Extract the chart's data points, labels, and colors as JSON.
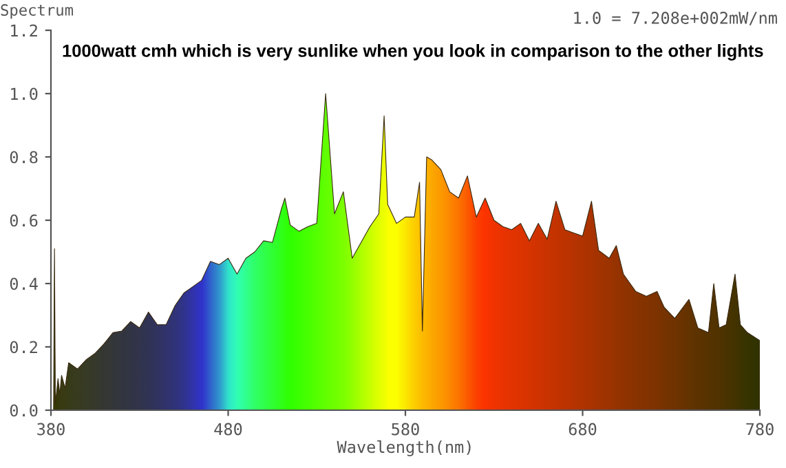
{
  "chart_data": {
    "type": "area",
    "ylabel": "Spectrum",
    "xlabel": "Wavelength(nm)",
    "annotations": [
      "1.0 = 7.208e+002mW/nm",
      "1000watt cmh which is very sunlike when you look in comparison to the other lights"
    ],
    "x": [
      380,
      381.5,
      382,
      382.5,
      384,
      385,
      386,
      388,
      390,
      395,
      400,
      405,
      410,
      415,
      420,
      425,
      430,
      435,
      440,
      445,
      450,
      455,
      460,
      465,
      470,
      475,
      480,
      485,
      490,
      495,
      500,
      505,
      510,
      512,
      515,
      520,
      525,
      530,
      535,
      540,
      545,
      550,
      555,
      560,
      565,
      568,
      570,
      575,
      580,
      585,
      588,
      589.6,
      592,
      595,
      600,
      605,
      610,
      615,
      620,
      625,
      630,
      635,
      640,
      645,
      650,
      655,
      660,
      665,
      670,
      675,
      680,
      685,
      689,
      695,
      699,
      703,
      710,
      716,
      722,
      726,
      732,
      740,
      745,
      751,
      754,
      757,
      761,
      766,
      769,
      773,
      780
    ],
    "values": [
      0,
      0,
      0.51,
      0.02,
      0.1,
      0.05,
      0.11,
      0.07,
      0.15,
      0.13,
      0.16,
      0.18,
      0.21,
      0.245,
      0.25,
      0.28,
      0.26,
      0.31,
      0.27,
      0.27,
      0.33,
      0.37,
      0.39,
      0.41,
      0.47,
      0.46,
      0.48,
      0.43,
      0.48,
      0.5,
      0.535,
      0.53,
      0.635,
      0.67,
      0.585,
      0.565,
      0.58,
      0.59,
      1.0,
      0.62,
      0.69,
      0.48,
      0.53,
      0.58,
      0.62,
      0.93,
      0.65,
      0.59,
      0.61,
      0.61,
      0.72,
      0.25,
      0.8,
      0.79,
      0.76,
      0.69,
      0.67,
      0.74,
      0.61,
      0.67,
      0.6,
      0.58,
      0.57,
      0.59,
      0.535,
      0.59,
      0.54,
      0.66,
      0.57,
      0.56,
      0.55,
      0.66,
      0.505,
      0.48,
      0.52,
      0.43,
      0.375,
      0.36,
      0.375,
      0.325,
      0.29,
      0.35,
      0.26,
      0.245,
      0.4,
      0.26,
      0.27,
      0.43,
      0.27,
      0.245,
      0.22
    ],
    "colors": [
      "#000000",
      "#000000",
      "#202020",
      "#000000",
      "#0a0a14",
      "#0a0a14",
      "#0a0a18",
      "#0a0a18",
      "#0a0a20",
      "#0a0a28",
      "#0a0a30",
      "#080838",
      "#060640",
      "#050548",
      "#040450",
      "#030358",
      "#020260",
      "#02026c",
      "#010178",
      "#000088",
      "#000098",
      "#0000b0",
      "#0000d8",
      "#0000ff",
      "#0040ff",
      "#0080ff",
      "#00e0ff",
      "#00ffe0",
      "#00ffb0",
      "#00ff80",
      "#00ff60",
      "#00ff40",
      "#00ff20",
      "#00ff10",
      "#00ff00",
      "#10ff00",
      "#20ff00",
      "#30ff00",
      "#40ff00",
      "#50ff00",
      "#60ff00",
      "#80ff00",
      "#a0ff00",
      "#c0ff00",
      "#e0ff00",
      "#f0ff00",
      "#ffff00",
      "#ffff00",
      "#ffe000",
      "#ffc000",
      "#ffb000",
      "#ffa800",
      "#ffa000",
      "#ff9000",
      "#ff8000",
      "#ff6800",
      "#ff5000",
      "#ff3000",
      "#ff1000",
      "#ff0000",
      "#f00000",
      "#e80000",
      "#e00000",
      "#d80000",
      "#d00000",
      "#c80000",
      "#c00000",
      "#b80000",
      "#b00000",
      "#a80000",
      "#a00000",
      "#980000",
      "#900000",
      "#880000",
      "#800000",
      "#780000",
      "#700000",
      "#680000",
      "#600000",
      "#580000",
      "#500000",
      "#400000",
      "#380000",
      "#300000",
      "#2c0000",
      "#280000",
      "#200000",
      "#180000",
      "#100000",
      "#080000",
      "#000000"
    ],
    "xlim": [
      380,
      780
    ],
    "xticks": [
      380,
      480,
      580,
      680,
      780
    ],
    "ylim": [
      0,
      1.2
    ],
    "yticks": [
      {
        "value": 0,
        "label": "0.0"
      },
      0.2,
      0.4,
      0.6,
      0.8,
      {
        "value": 1.0,
        "label": "1.0"
      },
      1.2
    ],
    "grid": false,
    "legend": false
  }
}
